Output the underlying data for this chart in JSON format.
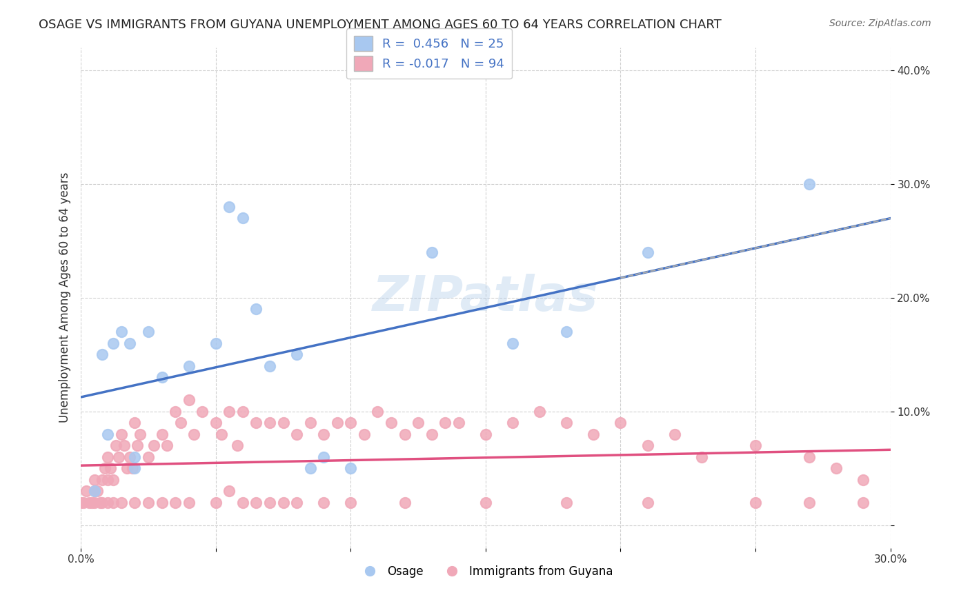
{
  "title": "OSAGE VS IMMIGRANTS FROM GUYANA UNEMPLOYMENT AMONG AGES 60 TO 64 YEARS CORRELATION CHART",
  "source": "Source: ZipAtlas.com",
  "xlabel": "",
  "ylabel": "Unemployment Among Ages 60 to 64 years",
  "xlim": [
    0.0,
    0.3
  ],
  "ylim": [
    -0.02,
    0.42
  ],
  "xticks": [
    0.0,
    0.05,
    0.1,
    0.15,
    0.2,
    0.25,
    0.3
  ],
  "xticklabels": [
    "0.0%",
    "",
    "",
    "",
    "",
    "",
    "30.0%"
  ],
  "yticks": [
    0.0,
    0.1,
    0.2,
    0.3,
    0.4
  ],
  "yticklabels": [
    "",
    "10.0%",
    "20.0%",
    "30.0%",
    "40.0%"
  ],
  "osage_R": 0.456,
  "osage_N": 25,
  "guyana_R": -0.017,
  "guyana_N": 94,
  "osage_color": "#a8c8f0",
  "guyana_color": "#f0a8b8",
  "osage_line_color": "#4472c4",
  "guyana_line_color": "#e05080",
  "watermark": "ZIPatlas",
  "background_color": "#ffffff",
  "grid_color": "#d0d0d0",
  "osage_x": [
    0.005,
    0.008,
    0.01,
    0.012,
    0.015,
    0.018,
    0.02,
    0.02,
    0.025,
    0.03,
    0.04,
    0.05,
    0.055,
    0.06,
    0.065,
    0.07,
    0.08,
    0.085,
    0.09,
    0.1,
    0.13,
    0.16,
    0.18,
    0.21,
    0.27
  ],
  "osage_y": [
    0.03,
    0.15,
    0.08,
    0.16,
    0.17,
    0.16,
    0.05,
    0.06,
    0.17,
    0.13,
    0.14,
    0.16,
    0.28,
    0.27,
    0.19,
    0.14,
    0.15,
    0.05,
    0.06,
    0.05,
    0.24,
    0.16,
    0.17,
    0.24,
    0.3
  ],
  "guyana_x": [
    0.0,
    0.001,
    0.002,
    0.003,
    0.004,
    0.005,
    0.005,
    0.006,
    0.007,
    0.008,
    0.009,
    0.01,
    0.01,
    0.011,
    0.012,
    0.013,
    0.014,
    0.015,
    0.016,
    0.017,
    0.018,
    0.019,
    0.02,
    0.021,
    0.022,
    0.025,
    0.027,
    0.03,
    0.032,
    0.035,
    0.037,
    0.04,
    0.042,
    0.045,
    0.05,
    0.052,
    0.055,
    0.058,
    0.06,
    0.065,
    0.07,
    0.075,
    0.08,
    0.085,
    0.09,
    0.095,
    0.1,
    0.105,
    0.11,
    0.115,
    0.12,
    0.125,
    0.13,
    0.135,
    0.14,
    0.15,
    0.16,
    0.17,
    0.18,
    0.19,
    0.2,
    0.21,
    0.22,
    0.23,
    0.25,
    0.27,
    0.28,
    0.29,
    0.005,
    0.008,
    0.01,
    0.012,
    0.015,
    0.02,
    0.025,
    0.03,
    0.035,
    0.04,
    0.05,
    0.055,
    0.06,
    0.065,
    0.07,
    0.075,
    0.08,
    0.09,
    0.1,
    0.12,
    0.15,
    0.18,
    0.21,
    0.29,
    0.25,
    0.27
  ],
  "guyana_y": [
    0.02,
    0.02,
    0.03,
    0.02,
    0.02,
    0.03,
    0.04,
    0.03,
    0.02,
    0.04,
    0.05,
    0.04,
    0.06,
    0.05,
    0.04,
    0.07,
    0.06,
    0.08,
    0.07,
    0.05,
    0.06,
    0.05,
    0.09,
    0.07,
    0.08,
    0.06,
    0.07,
    0.08,
    0.07,
    0.1,
    0.09,
    0.11,
    0.08,
    0.1,
    0.09,
    0.08,
    0.1,
    0.07,
    0.1,
    0.09,
    0.09,
    0.09,
    0.08,
    0.09,
    0.08,
    0.09,
    0.09,
    0.08,
    0.1,
    0.09,
    0.08,
    0.09,
    0.08,
    0.09,
    0.09,
    0.08,
    0.09,
    0.1,
    0.09,
    0.08,
    0.09,
    0.07,
    0.08,
    0.06,
    0.07,
    0.06,
    0.05,
    0.04,
    0.02,
    0.02,
    0.02,
    0.02,
    0.02,
    0.02,
    0.02,
    0.02,
    0.02,
    0.02,
    0.02,
    0.03,
    0.02,
    0.02,
    0.02,
    0.02,
    0.02,
    0.02,
    0.02,
    0.02,
    0.02,
    0.02,
    0.02,
    0.02,
    0.02,
    0.02
  ]
}
